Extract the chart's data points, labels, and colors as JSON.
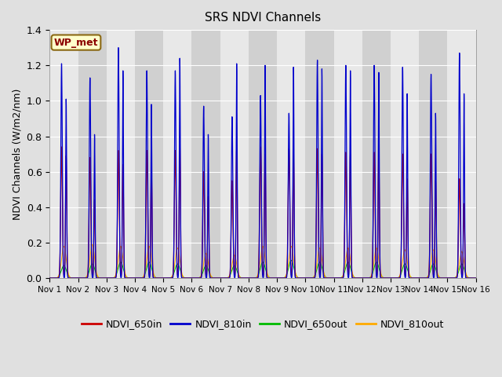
{
  "title": "SRS NDVI Channels",
  "ylabel": "NDVI Channels (W/m2/nm)",
  "ylim": [
    0,
    1.4
  ],
  "yticks": [
    0.0,
    0.2,
    0.4,
    0.6,
    0.8,
    1.0,
    1.2,
    1.4
  ],
  "fig_bg": "#e0e0e0",
  "plot_bg_light": "#e8e8e8",
  "plot_bg_dark": "#d0d0d0",
  "colors": {
    "NDVI_650in": "#cc0000",
    "NDVI_810in": "#0000cc",
    "NDVI_650out": "#00bb00",
    "NDVI_810out": "#ffaa00"
  },
  "station_label": "WP_met",
  "num_days": 15,
  "blue_peaks": [
    1.21,
    1.13,
    1.3,
    1.17,
    1.17,
    0.97,
    0.91,
    1.03,
    0.93,
    1.23,
    1.2,
    1.2,
    1.19,
    1.15,
    1.27
  ],
  "red_peaks": [
    0.74,
    0.68,
    0.72,
    0.72,
    0.72,
    0.6,
    0.55,
    0.74,
    0.73,
    0.73,
    0.71,
    0.71,
    0.7,
    0.7,
    0.56
  ],
  "green_peaks": [
    0.07,
    0.08,
    0.09,
    0.09,
    0.08,
    0.07,
    0.07,
    0.09,
    0.1,
    0.09,
    0.09,
    0.09,
    0.08,
    0.08,
    0.08
  ],
  "orange_peaks": [
    0.18,
    0.19,
    0.18,
    0.18,
    0.17,
    0.14,
    0.13,
    0.18,
    0.18,
    0.17,
    0.17,
    0.17,
    0.16,
    0.16,
    0.15
  ],
  "blue_peaks2": [
    1.01,
    0.81,
    1.17,
    0.98,
    1.24,
    0.81,
    1.21,
    1.2,
    1.19,
    1.18,
    1.17,
    1.16,
    1.04,
    0.93,
    1.04
  ],
  "red_peaks2": [
    0.69,
    0.44,
    0.64,
    0.63,
    0.75,
    0.46,
    0.73,
    0.7,
    0.7,
    0.7,
    0.7,
    0.7,
    0.56,
    0.55,
    0.42
  ]
}
